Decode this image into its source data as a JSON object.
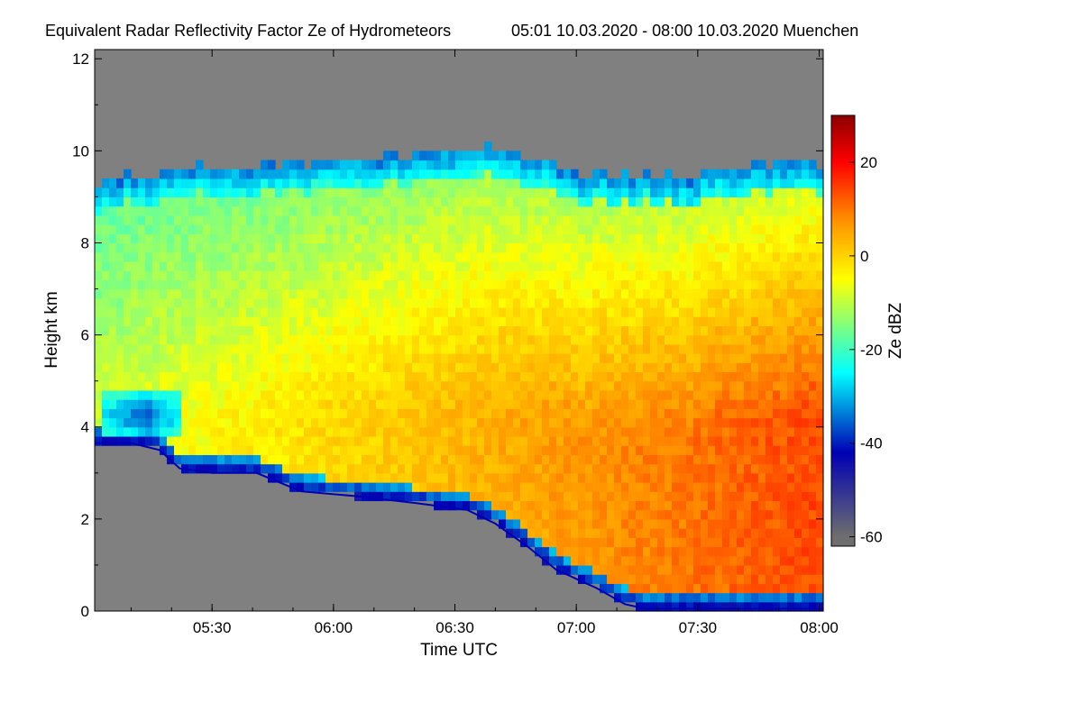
{
  "chart_data": {
    "type": "heatmap",
    "title": "Equivalent Radar Reflectivity Factor Ze of Hydrometeors",
    "subtitle": "05:01 10.03.2020 - 08:00 10.03.2020 Muenchen",
    "xlabel": "Time UTC",
    "ylabel": "Height km",
    "x_range_minutes": [
      301,
      481
    ],
    "x_ticks": [
      {
        "minute": 330,
        "label": "05:30"
      },
      {
        "minute": 360,
        "label": "06:00"
      },
      {
        "minute": 390,
        "label": "06:30"
      },
      {
        "minute": 420,
        "label": "07:00"
      },
      {
        "minute": 450,
        "label": "07:30"
      },
      {
        "minute": 480,
        "label": "08:00"
      }
    ],
    "ylim": [
      0,
      12.2
    ],
    "y_ticks": [
      {
        "value": 0,
        "label": "0"
      },
      {
        "value": 2,
        "label": "2"
      },
      {
        "value": 4,
        "label": "4"
      },
      {
        "value": 6,
        "label": "6"
      },
      {
        "value": 8,
        "label": "8"
      },
      {
        "value": 10,
        "label": "10"
      },
      {
        "value": 12,
        "label": "12"
      }
    ],
    "colorbar": {
      "label": "Ze dBZ",
      "range": [
        -62,
        30
      ],
      "ticks": [
        {
          "value": 20,
          "label": "20"
        },
        {
          "value": 0,
          "label": "0"
        },
        {
          "value": -20,
          "label": "-20"
        },
        {
          "value": -40,
          "label": "-40"
        },
        {
          "value": -60,
          "label": "-60"
        }
      ],
      "colors": [
        "#6e6e6e",
        "#0000b4",
        "#00ffff",
        "#ffff00",
        "#ff8c00",
        "#ff0000",
        "#8b0000"
      ],
      "color_stops_dbz": [
        -60,
        -42,
        -25,
        -5,
        8,
        20,
        30
      ]
    },
    "no_data_color": "#808080",
    "cloud_top_km": [
      {
        "minute": 301,
        "value": 9.3
      },
      {
        "minute": 315,
        "value": 9.5
      },
      {
        "minute": 330,
        "value": 9.6
      },
      {
        "minute": 345,
        "value": 9.7
      },
      {
        "minute": 360,
        "value": 9.8
      },
      {
        "minute": 375,
        "value": 9.9
      },
      {
        "minute": 385,
        "value": 10.0
      },
      {
        "minute": 398,
        "value": 10.05
      },
      {
        "minute": 405,
        "value": 9.95
      },
      {
        "minute": 415,
        "value": 9.7
      },
      {
        "minute": 420,
        "value": 9.5
      },
      {
        "minute": 435,
        "value": 9.5
      },
      {
        "minute": 445,
        "value": 9.4
      },
      {
        "minute": 460,
        "value": 9.6
      },
      {
        "minute": 475,
        "value": 9.8
      },
      {
        "minute": 481,
        "value": 9.8
      }
    ],
    "cloud_base_km": [
      {
        "minute": 301,
        "value": 3.65
      },
      {
        "minute": 310,
        "value": 3.65
      },
      {
        "minute": 317,
        "value": 3.5
      },
      {
        "minute": 322,
        "value": 3.1
      },
      {
        "minute": 330,
        "value": 3.0
      },
      {
        "minute": 341,
        "value": 3.0
      },
      {
        "minute": 352,
        "value": 2.6
      },
      {
        "minute": 365,
        "value": 2.5
      },
      {
        "minute": 380,
        "value": 2.35
      },
      {
        "minute": 393,
        "value": 2.2
      },
      {
        "minute": 400,
        "value": 1.9
      },
      {
        "minute": 408,
        "value": 1.4
      },
      {
        "minute": 415,
        "value": 0.9
      },
      {
        "minute": 420,
        "value": 0.7
      },
      {
        "minute": 425,
        "value": 0.5
      },
      {
        "minute": 432,
        "value": 0.15
      },
      {
        "minute": 437,
        "value": 0.05
      },
      {
        "minute": 481,
        "value": 0.05
      }
    ],
    "reflectivity_notes": "Low reflectivity (-30 to -40 dBZ) pocket near 4.2 km around 05:15; maximum (~15-20 dBZ) between 1 and 3 km after 07:00"
  }
}
